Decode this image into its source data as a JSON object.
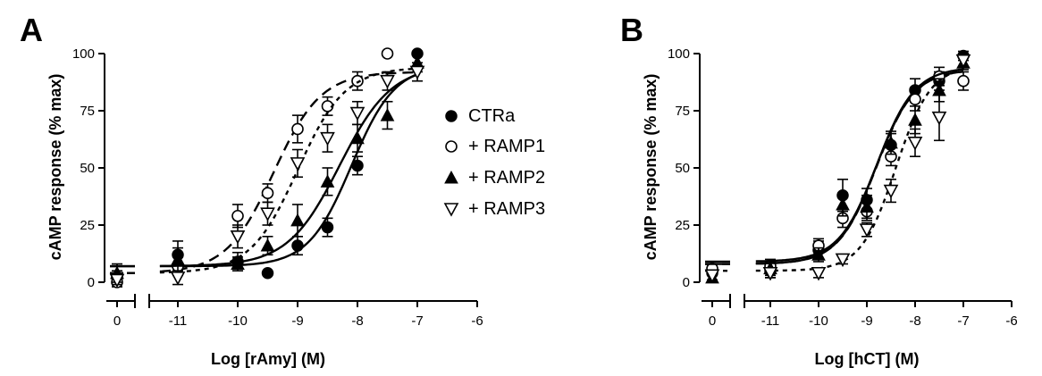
{
  "legend": {
    "position": "center",
    "items": [
      {
        "key": "CTRa",
        "label": "CTRa",
        "marker": "filled-circle",
        "line": "solid"
      },
      {
        "key": "RAMP1",
        "label": "+ RAMP1",
        "marker": "open-circle",
        "line": "dashed"
      },
      {
        "key": "RAMP2",
        "label": "+ RAMP2",
        "marker": "filled-triangle",
        "line": "solid"
      },
      {
        "key": "RAMP3",
        "label": "+ RAMP3",
        "marker": "open-triangle-down",
        "line": "dotted"
      }
    ]
  },
  "chart_data": [
    {
      "panel": "A",
      "type": "scatter",
      "xlabel": "Log [rAmy] (M)",
      "ylabel": "cAMP response (% max)",
      "xlim": [
        -11,
        -6
      ],
      "ylim": [
        0,
        100
      ],
      "x_break": true,
      "xticks": [
        "0",
        "-11",
        "-10",
        "-9",
        "-8",
        "-7",
        "-6"
      ],
      "yticks": [
        "0",
        "25",
        "50",
        "75",
        "100"
      ],
      "series": [
        {
          "name": "CTRa",
          "x": [
            0,
            -11,
            -10,
            -9.5,
            -9,
            -8.5,
            -8,
            -7
          ],
          "y": [
            2,
            12,
            9,
            4,
            16,
            24,
            51,
            100
          ],
          "err": [
            3,
            6,
            4,
            0,
            4,
            4,
            4,
            0
          ],
          "fit": {
            "bottom": 7,
            "top": 95,
            "logEC50": -8.1,
            "hill": 1.2
          }
        },
        {
          "name": "+ RAMP1",
          "x": [
            0,
            -11,
            -10,
            -9.5,
            -9,
            -8.5,
            -8,
            -7.5
          ],
          "y": [
            0,
            7,
            29,
            39,
            67,
            77,
            88,
            100
          ],
          "err": [
            2,
            4,
            5,
            4,
            6,
            4,
            4,
            0
          ],
          "fit": {
            "bottom": 4,
            "top": 92,
            "logEC50": -9.4,
            "hill": 1.1
          }
        },
        {
          "name": "+ RAMP2",
          "x": [
            0,
            -11,
            -10,
            -9.5,
            -9,
            -8.5,
            -8,
            -7.5,
            -7
          ],
          "y": [
            4,
            10,
            8,
            16,
            27,
            44,
            63,
            73,
            96
          ],
          "err": [
            4,
            5,
            3,
            4,
            7,
            6,
            6,
            6,
            4
          ],
          "fit": {
            "bottom": 7,
            "top": 95,
            "logEC50": -8.3,
            "hill": 1.0
          }
        },
        {
          "name": "+ RAMP3",
          "x": [
            0,
            -11,
            -10,
            -9.5,
            -9,
            -8.5,
            -8,
            -7.5,
            -7
          ],
          "y": [
            1,
            2,
            20,
            30,
            52,
            63,
            74,
            88,
            92
          ],
          "err": [
            2,
            3,
            5,
            5,
            6,
            6,
            5,
            4,
            4
          ],
          "fit": {
            "bottom": 4,
            "top": 94,
            "logEC50": -9.0,
            "hill": 1.1
          }
        }
      ]
    },
    {
      "panel": "B",
      "type": "scatter",
      "xlabel": "Log [hCT] (M)",
      "ylabel": "cAMP response (% max)",
      "xlim": [
        -11,
        -6
      ],
      "ylim": [
        0,
        100
      ],
      "x_break": true,
      "xticks": [
        "0",
        "-11",
        "-10",
        "-9",
        "-8",
        "-7",
        "-6"
      ],
      "yticks": [
        "0",
        "25",
        "50",
        "75",
        "100"
      ],
      "series": [
        {
          "name": "CTRa",
          "x": [
            0,
            -11,
            -10,
            -9.5,
            -9,
            -8.5,
            -8,
            -7.5,
            -7
          ],
          "y": [
            4,
            5,
            14,
            38,
            36,
            60,
            84,
            88,
            99
          ],
          "err": [
            3,
            3,
            4,
            7,
            5,
            5,
            5,
            4,
            2
          ],
          "fit": {
            "bottom": 9,
            "top": 93,
            "logEC50": -8.8,
            "hill": 1.1
          }
        },
        {
          "name": "+ RAMP1",
          "x": [
            0,
            -11,
            -10,
            -9.5,
            -9,
            -8.5,
            -8,
            -7.5,
            -7
          ],
          "y": [
            6,
            7,
            16,
            28,
            31,
            55,
            80,
            90,
            88
          ],
          "err": [
            3,
            3,
            3,
            4,
            4,
            4,
            5,
            4,
            4
          ],
          "fit": {
            "bottom": 8,
            "top": 93,
            "logEC50": -8.8,
            "hill": 1.1
          }
        },
        {
          "name": "+ RAMP2",
          "x": [
            0,
            -11,
            -10,
            -9.5,
            -9,
            -8.5,
            -8,
            -7.5,
            -7
          ],
          "y": [
            2,
            6,
            12,
            34,
            33,
            61,
            71,
            84,
            96
          ],
          "err": [
            2,
            3,
            3,
            5,
            5,
            5,
            6,
            5,
            3
          ],
          "fit": {
            "bottom": 8,
            "top": 94,
            "logEC50": -8.8,
            "hill": 1.1
          }
        },
        {
          "name": "+ RAMP3",
          "x": [
            0,
            -11,
            -10,
            -9.5,
            -9,
            -8.5,
            -8,
            -7.5,
            -7
          ],
          "y": [
            3,
            4,
            4,
            10,
            23,
            40,
            61,
            72,
            97
          ],
          "err": [
            2,
            2,
            2,
            2,
            3,
            5,
            6,
            10,
            3
          ],
          "fit": {
            "bottom": 5,
            "top": 95,
            "logEC50": -8.4,
            "hill": 1.2
          }
        }
      ]
    }
  ]
}
